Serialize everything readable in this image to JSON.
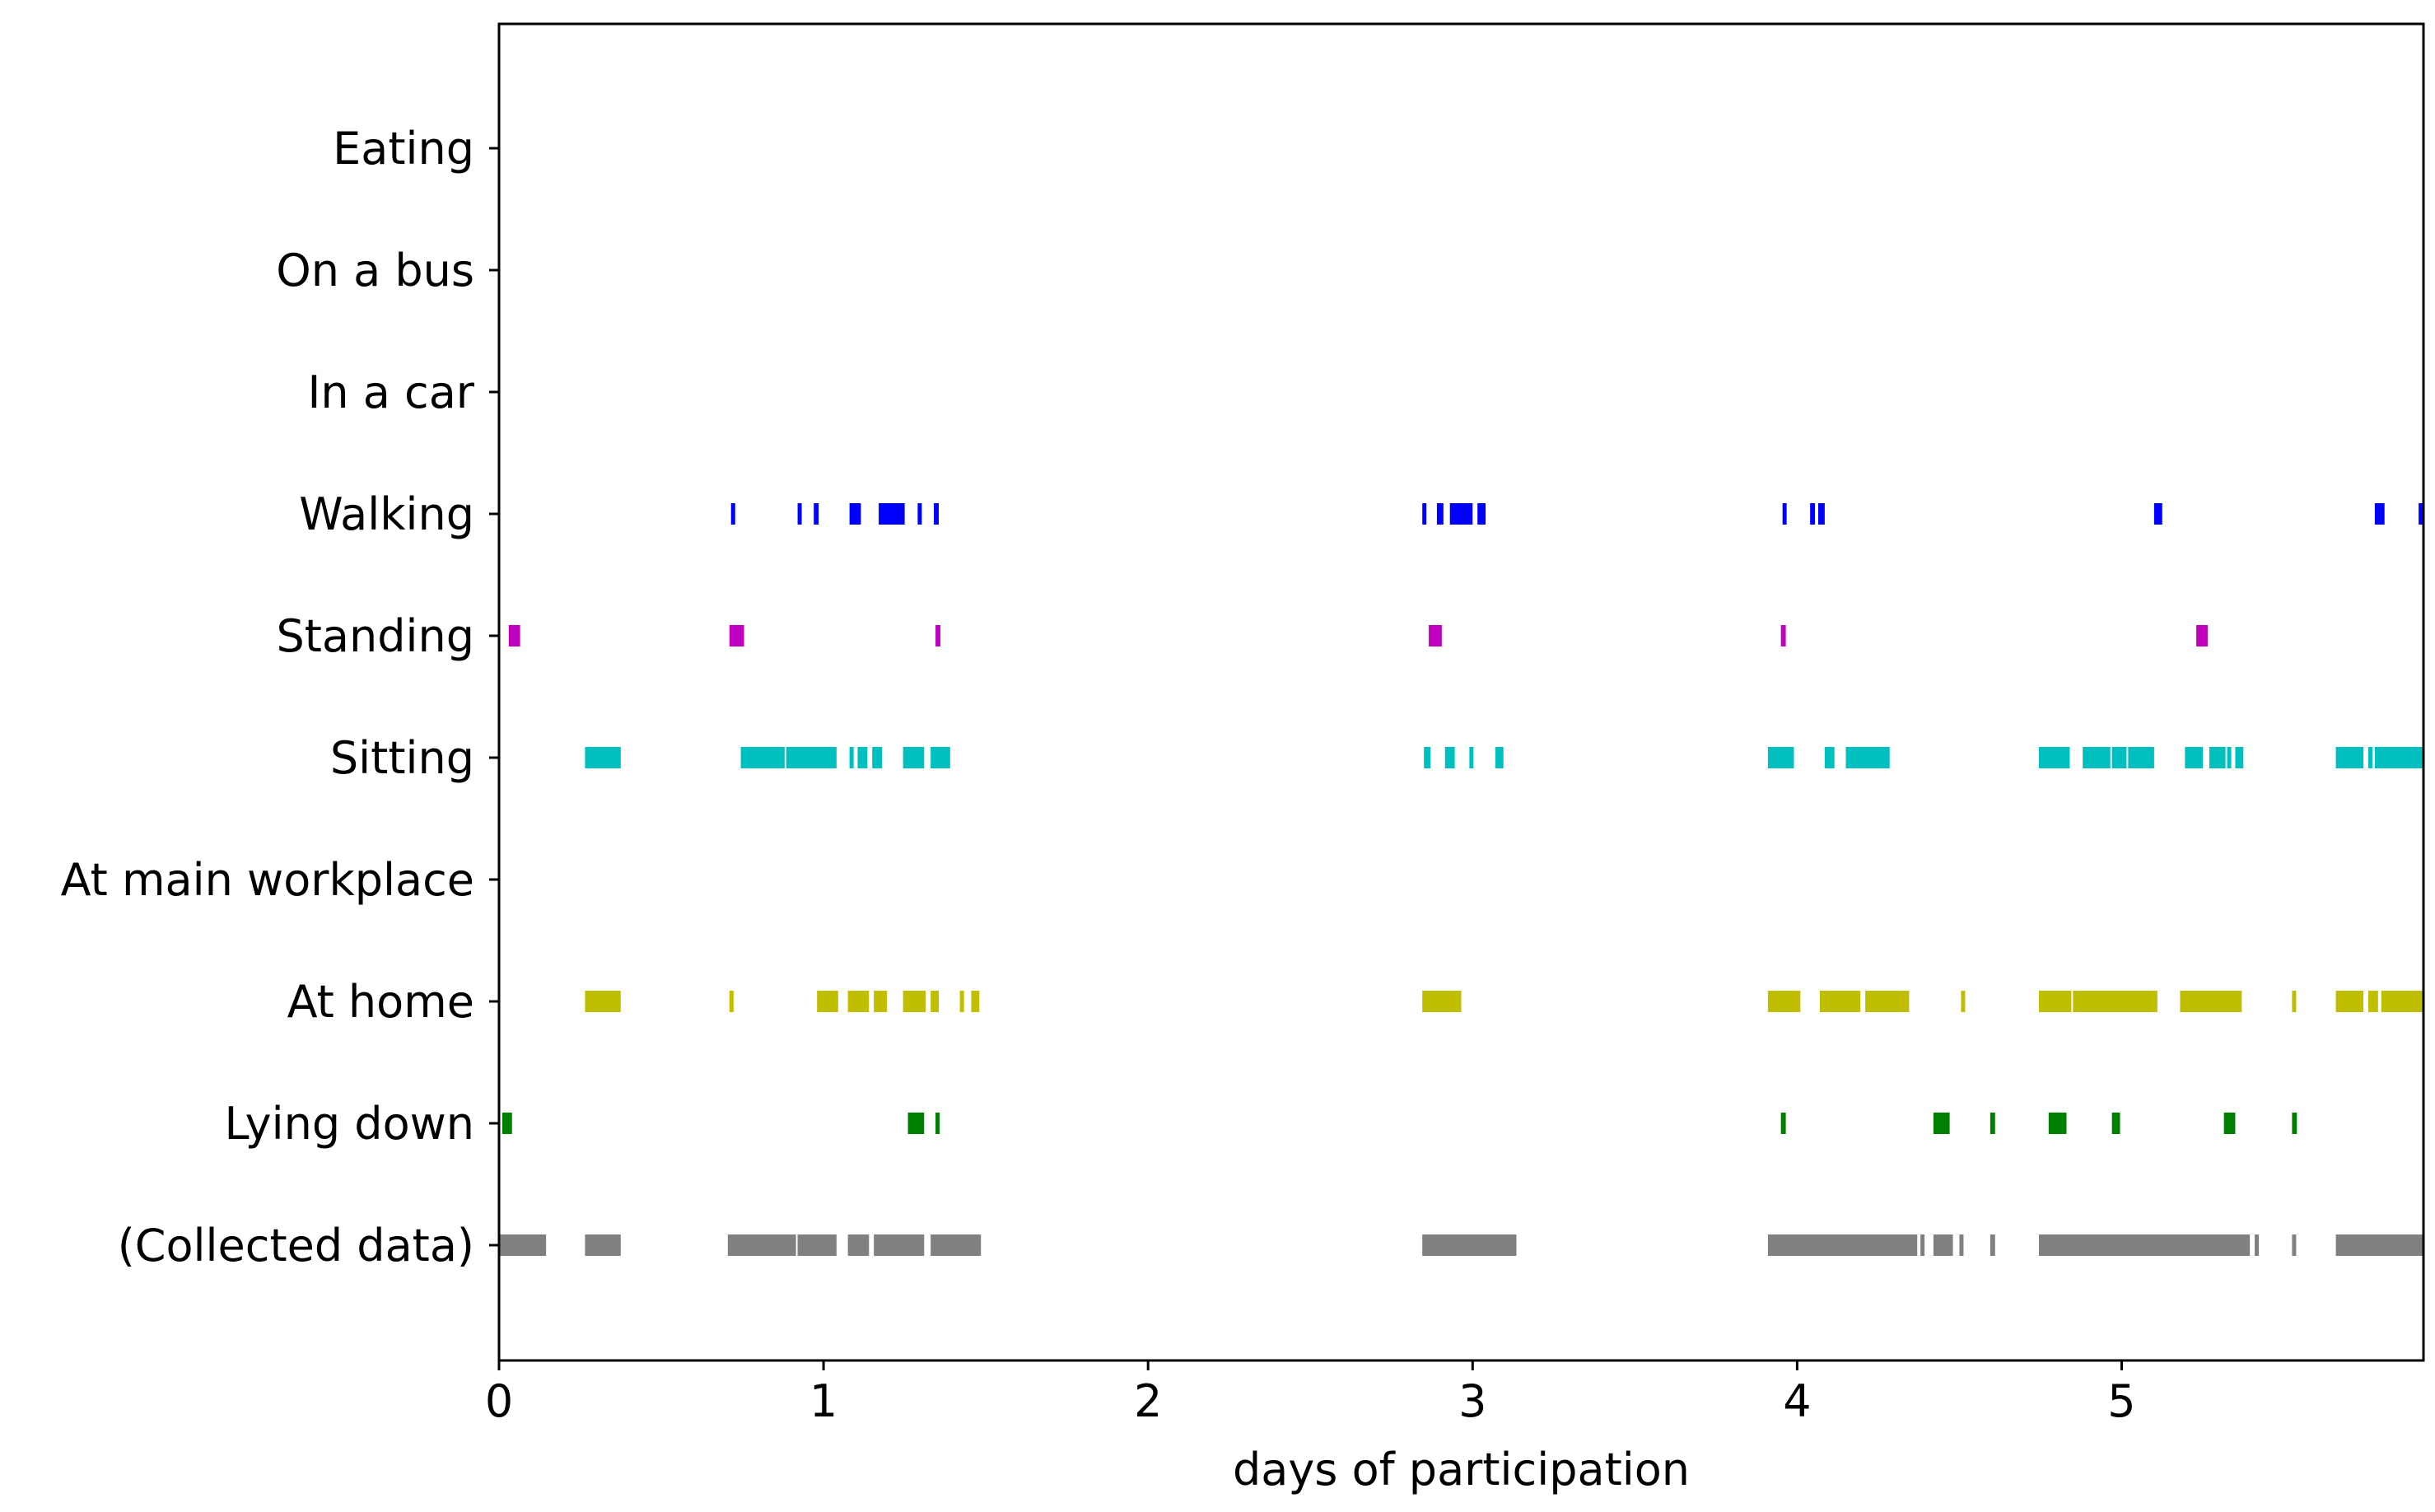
{
  "chart_data": {
    "type": "timeline",
    "title": "",
    "xlabel": "days of participation",
    "ylabel": "",
    "xlim": [
      0,
      5.93
    ],
    "x_ticks": [
      "0",
      "1",
      "2",
      "3",
      "4",
      "5"
    ],
    "grid": false,
    "categories": [
      "Eating",
      "On a bus",
      "In a car",
      "Walking",
      "Standing",
      "Sitting",
      "At main workplace",
      "At home",
      "Lying down",
      "(Collected data)"
    ],
    "series": [
      {
        "name": "Eating",
        "color": "#000000",
        "segments": []
      },
      {
        "name": "On a bus",
        "color": "#000000",
        "segments": []
      },
      {
        "name": "In a car",
        "color": "#000000",
        "segments": []
      },
      {
        "name": "Walking",
        "color": "#0000ff",
        "segments": [
          [
            0.715,
            0.725
          ],
          [
            0.92,
            0.93
          ],
          [
            0.97,
            0.985
          ],
          [
            1.08,
            1.115
          ],
          [
            1.17,
            1.25
          ],
          [
            1.29,
            1.3
          ],
          [
            1.34,
            1.355
          ],
          [
            2.845,
            2.855
          ],
          [
            2.89,
            2.91
          ],
          [
            2.93,
            3.0
          ],
          [
            3.015,
            3.04
          ],
          [
            3.955,
            3.965
          ],
          [
            4.04,
            4.055
          ],
          [
            4.065,
            4.085
          ],
          [
            5.1,
            5.125
          ],
          [
            5.78,
            5.81
          ],
          [
            5.915,
            5.93
          ]
        ]
      },
      {
        "name": "Standing",
        "color": "#bf00bf",
        "segments": [
          [
            0.03,
            0.065
          ],
          [
            0.71,
            0.755
          ],
          [
            1.345,
            1.36
          ],
          [
            2.865,
            2.905
          ],
          [
            3.95,
            3.965
          ],
          [
            5.23,
            5.265
          ]
        ]
      },
      {
        "name": "Sitting",
        "color": "#00bfbf",
        "segments": [
          [
            0.265,
            0.375
          ],
          [
            0.745,
            0.88
          ],
          [
            0.885,
            1.04
          ],
          [
            1.08,
            1.09
          ],
          [
            1.105,
            1.135
          ],
          [
            1.15,
            1.18
          ],
          [
            1.245,
            1.31
          ],
          [
            1.33,
            1.39
          ],
          [
            2.85,
            2.87
          ],
          [
            2.915,
            2.945
          ],
          [
            2.99,
            2.995
          ],
          [
            3.07,
            3.095
          ],
          [
            3.91,
            3.99
          ],
          [
            4.085,
            4.115
          ],
          [
            4.15,
            4.285
          ],
          [
            4.745,
            4.84
          ],
          [
            4.88,
            4.965
          ],
          [
            4.97,
            5.015
          ],
          [
            5.02,
            5.1
          ],
          [
            5.195,
            5.25
          ],
          [
            5.27,
            5.32
          ],
          [
            5.325,
            5.335
          ],
          [
            5.35,
            5.375
          ],
          [
            5.66,
            5.745
          ],
          [
            5.76,
            5.765
          ],
          [
            5.78,
            5.93
          ]
        ]
      },
      {
        "name": "At main workplace",
        "color": "#000000",
        "segments": []
      },
      {
        "name": "At home",
        "color": "#bfbf00",
        "segments": [
          [
            0.265,
            0.375
          ],
          [
            0.71,
            0.72
          ],
          [
            0.98,
            1.045
          ],
          [
            1.075,
            1.14
          ],
          [
            1.155,
            1.195
          ],
          [
            1.245,
            1.315
          ],
          [
            1.33,
            1.355
          ],
          [
            1.42,
            1.43
          ],
          [
            1.455,
            1.48
          ],
          [
            2.845,
            2.965
          ],
          [
            3.91,
            4.01
          ],
          [
            4.07,
            4.195
          ],
          [
            4.21,
            4.345
          ],
          [
            4.505,
            4.515
          ],
          [
            4.745,
            4.845
          ],
          [
            4.85,
            5.11
          ],
          [
            5.18,
            5.37
          ],
          [
            5.525,
            5.535
          ],
          [
            5.66,
            5.745
          ],
          [
            5.76,
            5.79
          ],
          [
            5.8,
            5.93
          ]
        ]
      },
      {
        "name": "Lying down",
        "color": "#008000",
        "segments": [
          [
            0.01,
            0.04
          ],
          [
            1.26,
            1.31
          ],
          [
            1.345,
            1.355
          ],
          [
            3.95,
            3.965
          ],
          [
            4.42,
            4.47
          ],
          [
            4.595,
            4.61
          ],
          [
            4.775,
            4.83
          ],
          [
            4.97,
            4.995
          ],
          [
            5.315,
            5.35
          ],
          [
            5.525,
            5.54
          ]
        ]
      },
      {
        "name": "(Collected data)",
        "color": "#808080",
        "segments": [
          [
            0.0,
            0.145
          ],
          [
            0.265,
            0.375
          ],
          [
            0.705,
            0.915
          ],
          [
            0.92,
            1.04
          ],
          [
            1.075,
            1.14
          ],
          [
            1.155,
            1.31
          ],
          [
            1.33,
            1.485
          ],
          [
            2.845,
            3.135
          ],
          [
            3.91,
            4.37
          ],
          [
            4.38,
            4.39
          ],
          [
            4.42,
            4.48
          ],
          [
            4.5,
            4.51
          ],
          [
            4.595,
            4.61
          ],
          [
            4.745,
            5.395
          ],
          [
            5.41,
            5.42
          ],
          [
            5.525,
            5.535
          ],
          [
            5.66,
            5.93
          ]
        ]
      }
    ]
  }
}
